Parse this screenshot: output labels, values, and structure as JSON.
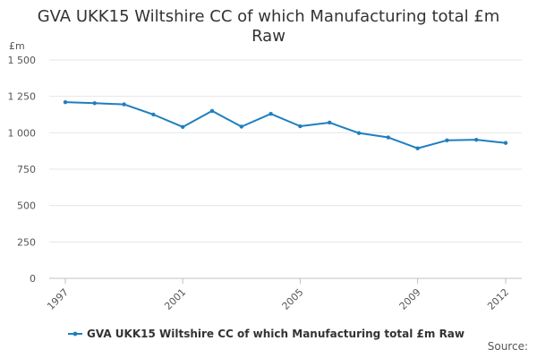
{
  "chart_data": {
    "type": "line",
    "title_line1": "GVA UKK15 Wiltshire CC of which Manufacturing total £m",
    "title_line2": "Raw",
    "ylabel": "£m",
    "xlabel": "",
    "ylim": [
      0,
      1500
    ],
    "yticks": [
      0,
      250,
      500,
      750,
      1000,
      1250,
      1500
    ],
    "ytick_labels": [
      "0",
      "250",
      "500",
      "750",
      "1 000",
      "1 250",
      "1 500"
    ],
    "xlim": [
      1997,
      2012
    ],
    "xticks": [
      1997,
      2001,
      2005,
      2009,
      2012
    ],
    "xtick_labels": [
      "1997",
      "2001",
      "2005",
      "2009",
      "2012"
    ],
    "grid": true,
    "legend_position": "bottom",
    "series": [
      {
        "name": "GVA UKK15 Wiltshire CC of which Manufacturing total £m Raw",
        "color": "#1f7fbf",
        "x": [
          1997,
          1998,
          1999,
          2000,
          2001,
          2002,
          2003,
          2004,
          2005,
          2006,
          2007,
          2008,
          2009,
          2010,
          2011,
          2012
        ],
        "values": [
          1210,
          1203,
          1195,
          1125,
          1040,
          1150,
          1042,
          1130,
          1045,
          1070,
          998,
          968,
          893,
          948,
          952,
          930
        ]
      }
    ]
  },
  "source_label": "Source:"
}
